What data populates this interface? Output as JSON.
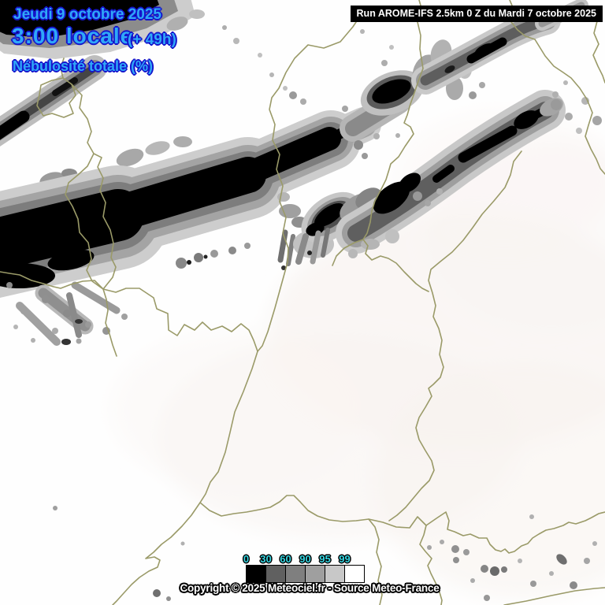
{
  "header": {
    "run_label": "Run AROME-IFS 2.5km 0 Z du Mardi 7 octobre 2025"
  },
  "datebox": {
    "date": "Jeudi 9 octobre 2025",
    "time": "3:00 locale",
    "offset": "(+ 49h)",
    "param": "Nébulosité totale (%)"
  },
  "legend": {
    "values": [
      "0",
      "30",
      "60",
      "90",
      "95",
      "99"
    ],
    "colors": [
      "#000000",
      "#606060",
      "#7f7f7f",
      "#9f9f9f",
      "#c8c8c8",
      "#ffffff"
    ]
  },
  "footer": {
    "copyright": "Copyright © 2025 Meteociel.fr - Source Meteo-France"
  },
  "colors": {
    "title_fill": "#2fa8f8",
    "title_outline": "#1515cc",
    "legend_text": "#35d6e2",
    "border_line": "#9a9a68",
    "cloud_levels": [
      "#000000",
      "#565656",
      "#7d7d7d",
      "#a4a4a4",
      "#cdcdcd",
      "#ffffff"
    ]
  }
}
